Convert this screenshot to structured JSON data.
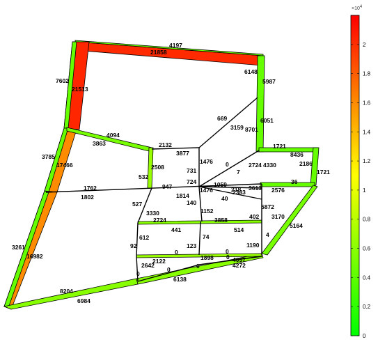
{
  "labels": {
    "l4197": "4197",
    "l21858": "21858",
    "l7602": "7602",
    "l21513": "21513",
    "l6148": "6148",
    "l5987": "5987",
    "l669": "669",
    "l3159": "3159",
    "l8701": "8701",
    "l6051": "6051",
    "l4094": "4094",
    "l3863": "3863",
    "l2132": "2132",
    "l3877": "3877",
    "l3785": "3785",
    "l17466": "17466",
    "l1721a": "1721",
    "l8436": "8436",
    "l2186": "2186",
    "l1721b": "1721",
    "l2508": "2508",
    "l1476a": "1476",
    "l0a": "0",
    "l2724a": "2724",
    "l4330": "4330",
    "l731": "731",
    "l7": "7",
    "l532": "532",
    "l724": "724",
    "l1059": "1059",
    "l947": "947",
    "l1762": "1762",
    "l1476b": "1476",
    "l218": "218",
    "l3613": "3613",
    "l2576": "2576",
    "l36": "36",
    "l2383": "2383",
    "l1814": "1814",
    "l40": "40",
    "l1802": "1802",
    "l140": "140",
    "l527": "527",
    "l5872": "5872",
    "l3330": "3330",
    "l1152": "1152",
    "l402": "402",
    "l3170": "3170",
    "l2724b": "2724",
    "l3858": "3858",
    "l5164": "5164",
    "l441": "441",
    "l514": "514",
    "l612": "612",
    "l74": "74",
    "l4": "4",
    "l1190": "1190",
    "l92": "92",
    "l123": "123",
    "l3261": "3261",
    "l16982": "16982",
    "l0b": "0",
    "l0c": "0",
    "l1898": "1898",
    "l0d": "0",
    "l4037": "4037",
    "l2122": "2122",
    "l2642": "2642",
    "l0e": "0",
    "l0f": "0",
    "l4272": "4272",
    "l0g": "0",
    "l6138": "6138",
    "l8204": "8204",
    "l6984": "6984"
  },
  "colorbar": {
    "exponent_base": "×10",
    "exponent_power": "4",
    "ticks": [
      "2",
      "1.8",
      "1.6",
      "1.4",
      "1.2",
      "1",
      "0.8",
      "0.6",
      "0.4",
      "0.2",
      "0"
    ],
    "max_value": 22000,
    "colors": {
      "low": "#00ff00",
      "mid": "#ffff00",
      "high": "#ff0000"
    }
  },
  "colors": {
    "background": "#ffffff",
    "outline": "#000000"
  }
}
